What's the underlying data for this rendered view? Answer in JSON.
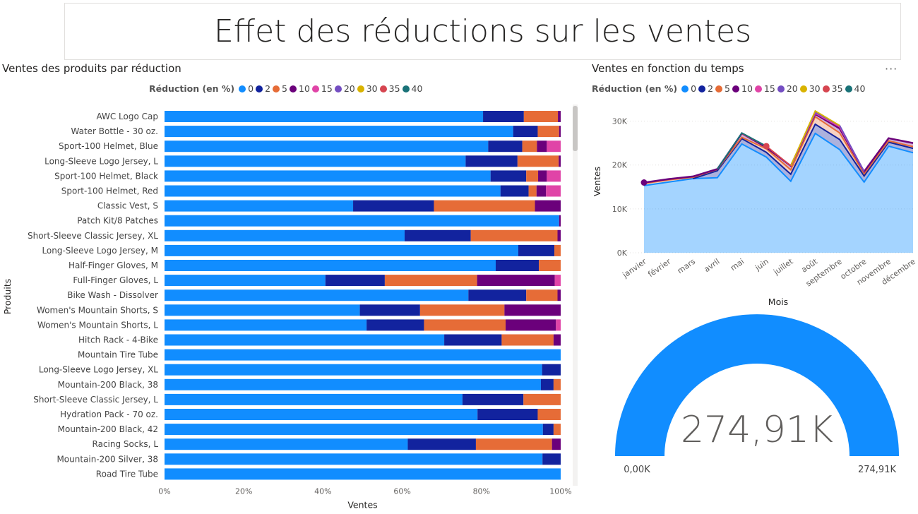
{
  "page_title": "Effet des réductions sur les ventes",
  "colors": {
    "0": "#118DFF",
    "2": "#12239E",
    "5": "#E66C37",
    "10": "#6B007B",
    "15": "#E044A7",
    "20": "#744EC2",
    "30": "#D9B300",
    "35": "#D64550",
    "40": "#197278"
  },
  "legend": {
    "title": "Réduction (en %)",
    "items": [
      "0",
      "2",
      "5",
      "10",
      "15",
      "20",
      "30",
      "35",
      "40"
    ]
  },
  "chart_data": [
    {
      "type": "bar",
      "orientation": "horizontal",
      "stacked": "100%",
      "title": "Ventes des produits par réduction",
      "xlabel": "Ventes",
      "ylabel": "Produits",
      "xticks": [
        "0%",
        "20%",
        "40%",
        "60%",
        "80%",
        "100%"
      ],
      "legend_position": "top",
      "categories": [
        "AWC Logo Cap",
        "Water Bottle - 30 oz.",
        "Sport-100 Helmet, Blue",
        "Long-Sleeve Logo Jersey, L",
        "Sport-100 Helmet, Black",
        "Sport-100 Helmet, Red",
        "Classic Vest, S",
        "Patch Kit/8 Patches",
        "Short-Sleeve Classic Jersey, XL",
        "Long-Sleeve Logo Jersey, M",
        "Half-Finger Gloves, M",
        "Full-Finger Gloves, L",
        "Bike Wash - Dissolver",
        "Women's Mountain Shorts, S",
        "Women's Mountain Shorts, L",
        "Hitch Rack - 4-Bike",
        "Mountain Tire Tube",
        "Long-Sleeve Logo Jersey, XL",
        "Mountain-200 Black, 38",
        "Short-Sleeve Classic Jersey, L",
        "Hydration Pack - 70 oz.",
        "Mountain-200 Black, 42",
        "Racing Socks, L",
        "Mountain-200 Silver, 38",
        "Road Tire Tube"
      ],
      "series": [
        {
          "name": "0",
          "values": [
            80.4,
            88,
            81.7,
            76,
            82.3,
            84.8,
            47.6,
            99.6,
            60.6,
            89.3,
            83.6,
            40.6,
            76.7,
            49.3,
            51,
            70.6,
            100,
            95.3,
            95,
            75.2,
            79,
            95.5,
            61.4,
            95.4,
            100
          ]
        },
        {
          "name": "2",
          "values": [
            10.3,
            6.2,
            8.6,
            13.1,
            9,
            7.1,
            20.4,
            0,
            16.7,
            9.1,
            10.9,
            15,
            14.6,
            15.2,
            14.5,
            14.5,
            0,
            4.7,
            3.2,
            15.4,
            15.2,
            2.7,
            17.2,
            4.6,
            0
          ]
        },
        {
          "name": "5",
          "values": [
            8.6,
            5.4,
            3.7,
            10.4,
            3,
            2,
            25.5,
            0,
            21.9,
            1.6,
            5.5,
            23.3,
            7.9,
            21.3,
            20.6,
            13.1,
            0,
            0,
            1.8,
            9.4,
            5.8,
            1.8,
            19.2,
            0,
            0
          ]
        },
        {
          "name": "10",
          "values": [
            0.7,
            0.4,
            2.5,
            0.5,
            2.2,
            2.4,
            6.5,
            0.4,
            0.8,
            0,
            0,
            19.6,
            0.8,
            14.2,
            12.7,
            1.8,
            0,
            0,
            0,
            0,
            0,
            0,
            2.2,
            0,
            0
          ]
        },
        {
          "name": "15",
          "values": [
            0,
            0,
            3.5,
            0,
            3.5,
            3.7,
            0,
            0,
            0,
            0,
            0,
            1.5,
            0,
            0,
            1.2,
            0,
            0,
            0,
            0,
            0,
            0,
            0,
            0,
            0,
            0
          ]
        }
      ]
    },
    {
      "type": "area",
      "stacked": true,
      "title": "Ventes en fonction du temps",
      "xlabel": "Mois",
      "ylabel": "Ventes",
      "yticks": [
        "0K",
        "10K",
        "20K",
        "30K"
      ],
      "ylim": [
        0,
        32500
      ],
      "legend_position": "top",
      "categories": [
        "janvier",
        "février",
        "mars",
        "avril",
        "mai",
        "juin",
        "juillet",
        "août",
        "septembre",
        "octobre",
        "novembre",
        "décembre"
      ],
      "series": [
        {
          "name": "0",
          "values": [
            15300,
            16100,
            16900,
            17100,
            24800,
            21800,
            16300,
            27200,
            23500,
            16100,
            24300,
            22800
          ]
        },
        {
          "name": "2",
          "values": [
            0,
            0,
            0,
            1600,
            1200,
            1100,
            1600,
            2100,
            2300,
            1400,
            900,
            1000
          ]
        },
        {
          "name": "5",
          "values": [
            500,
            500,
            300,
            300,
            300,
            800,
            1000,
            1700,
            1500,
            500,
            300,
            400
          ]
        },
        {
          "name": "10",
          "values": [
            200,
            200,
            200,
            100,
            900,
            300,
            900,
            600,
            1000,
            500,
            600,
            800
          ]
        },
        {
          "name": "15",
          "values": [
            0,
            0,
            0,
            0,
            0,
            0,
            0,
            200,
            400,
            0,
            0,
            0
          ]
        },
        {
          "name": "20",
          "values": [
            0,
            0,
            0,
            0,
            0,
            0,
            0,
            200,
            300,
            0,
            0,
            0
          ]
        },
        {
          "name": "30",
          "values": [
            0,
            0,
            0,
            0,
            0,
            0,
            0,
            300,
            0,
            0,
            0,
            0
          ]
        },
        {
          "name": "35",
          "values": [
            0,
            0,
            0,
            0,
            0,
            300,
            0,
            0,
            0,
            0,
            0,
            0
          ]
        },
        {
          "name": "40",
          "values": [
            0,
            0,
            0,
            0,
            100,
            0,
            0,
            0,
            0,
            0,
            0,
            0
          ]
        }
      ]
    },
    {
      "type": "gauge",
      "value": 274910,
      "min": 0,
      "max": 274910,
      "value_label": "274,91K",
      "min_label": "0,00K",
      "max_label": "274,91K"
    }
  ]
}
